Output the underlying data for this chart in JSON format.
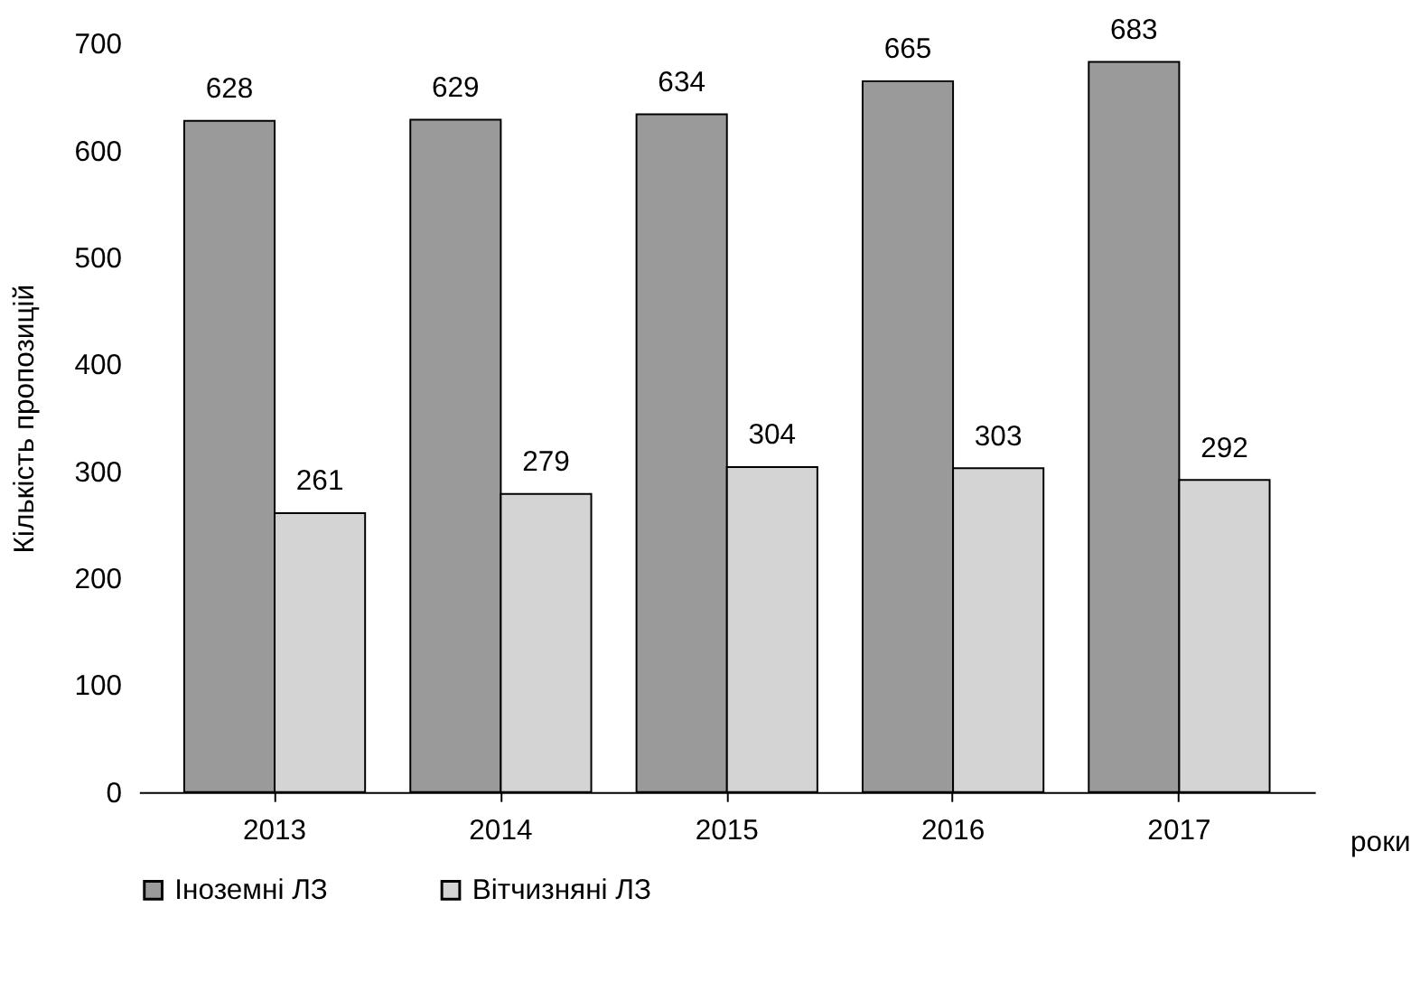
{
  "chart_data": {
    "type": "bar",
    "ylabel": "Кількість пропозицій",
    "xlabel": "роки",
    "categories": [
      "2013",
      "2014",
      "2015",
      "2016",
      "2017"
    ],
    "series": [
      {
        "name": "Іноземні ЛЗ",
        "color": "#9a9a9a",
        "values": [
          628,
          629,
          634,
          665,
          683
        ]
      },
      {
        "name": "Вітчизняні ЛЗ",
        "color": "#d4d4d4",
        "values": [
          261,
          279,
          304,
          303,
          292
        ]
      }
    ],
    "ylim": [
      0,
      700
    ],
    "yticks": [
      0,
      100,
      200,
      300,
      400,
      500,
      600,
      700
    ],
    "data_labels": true,
    "grid": false,
    "legend": "bottom"
  }
}
